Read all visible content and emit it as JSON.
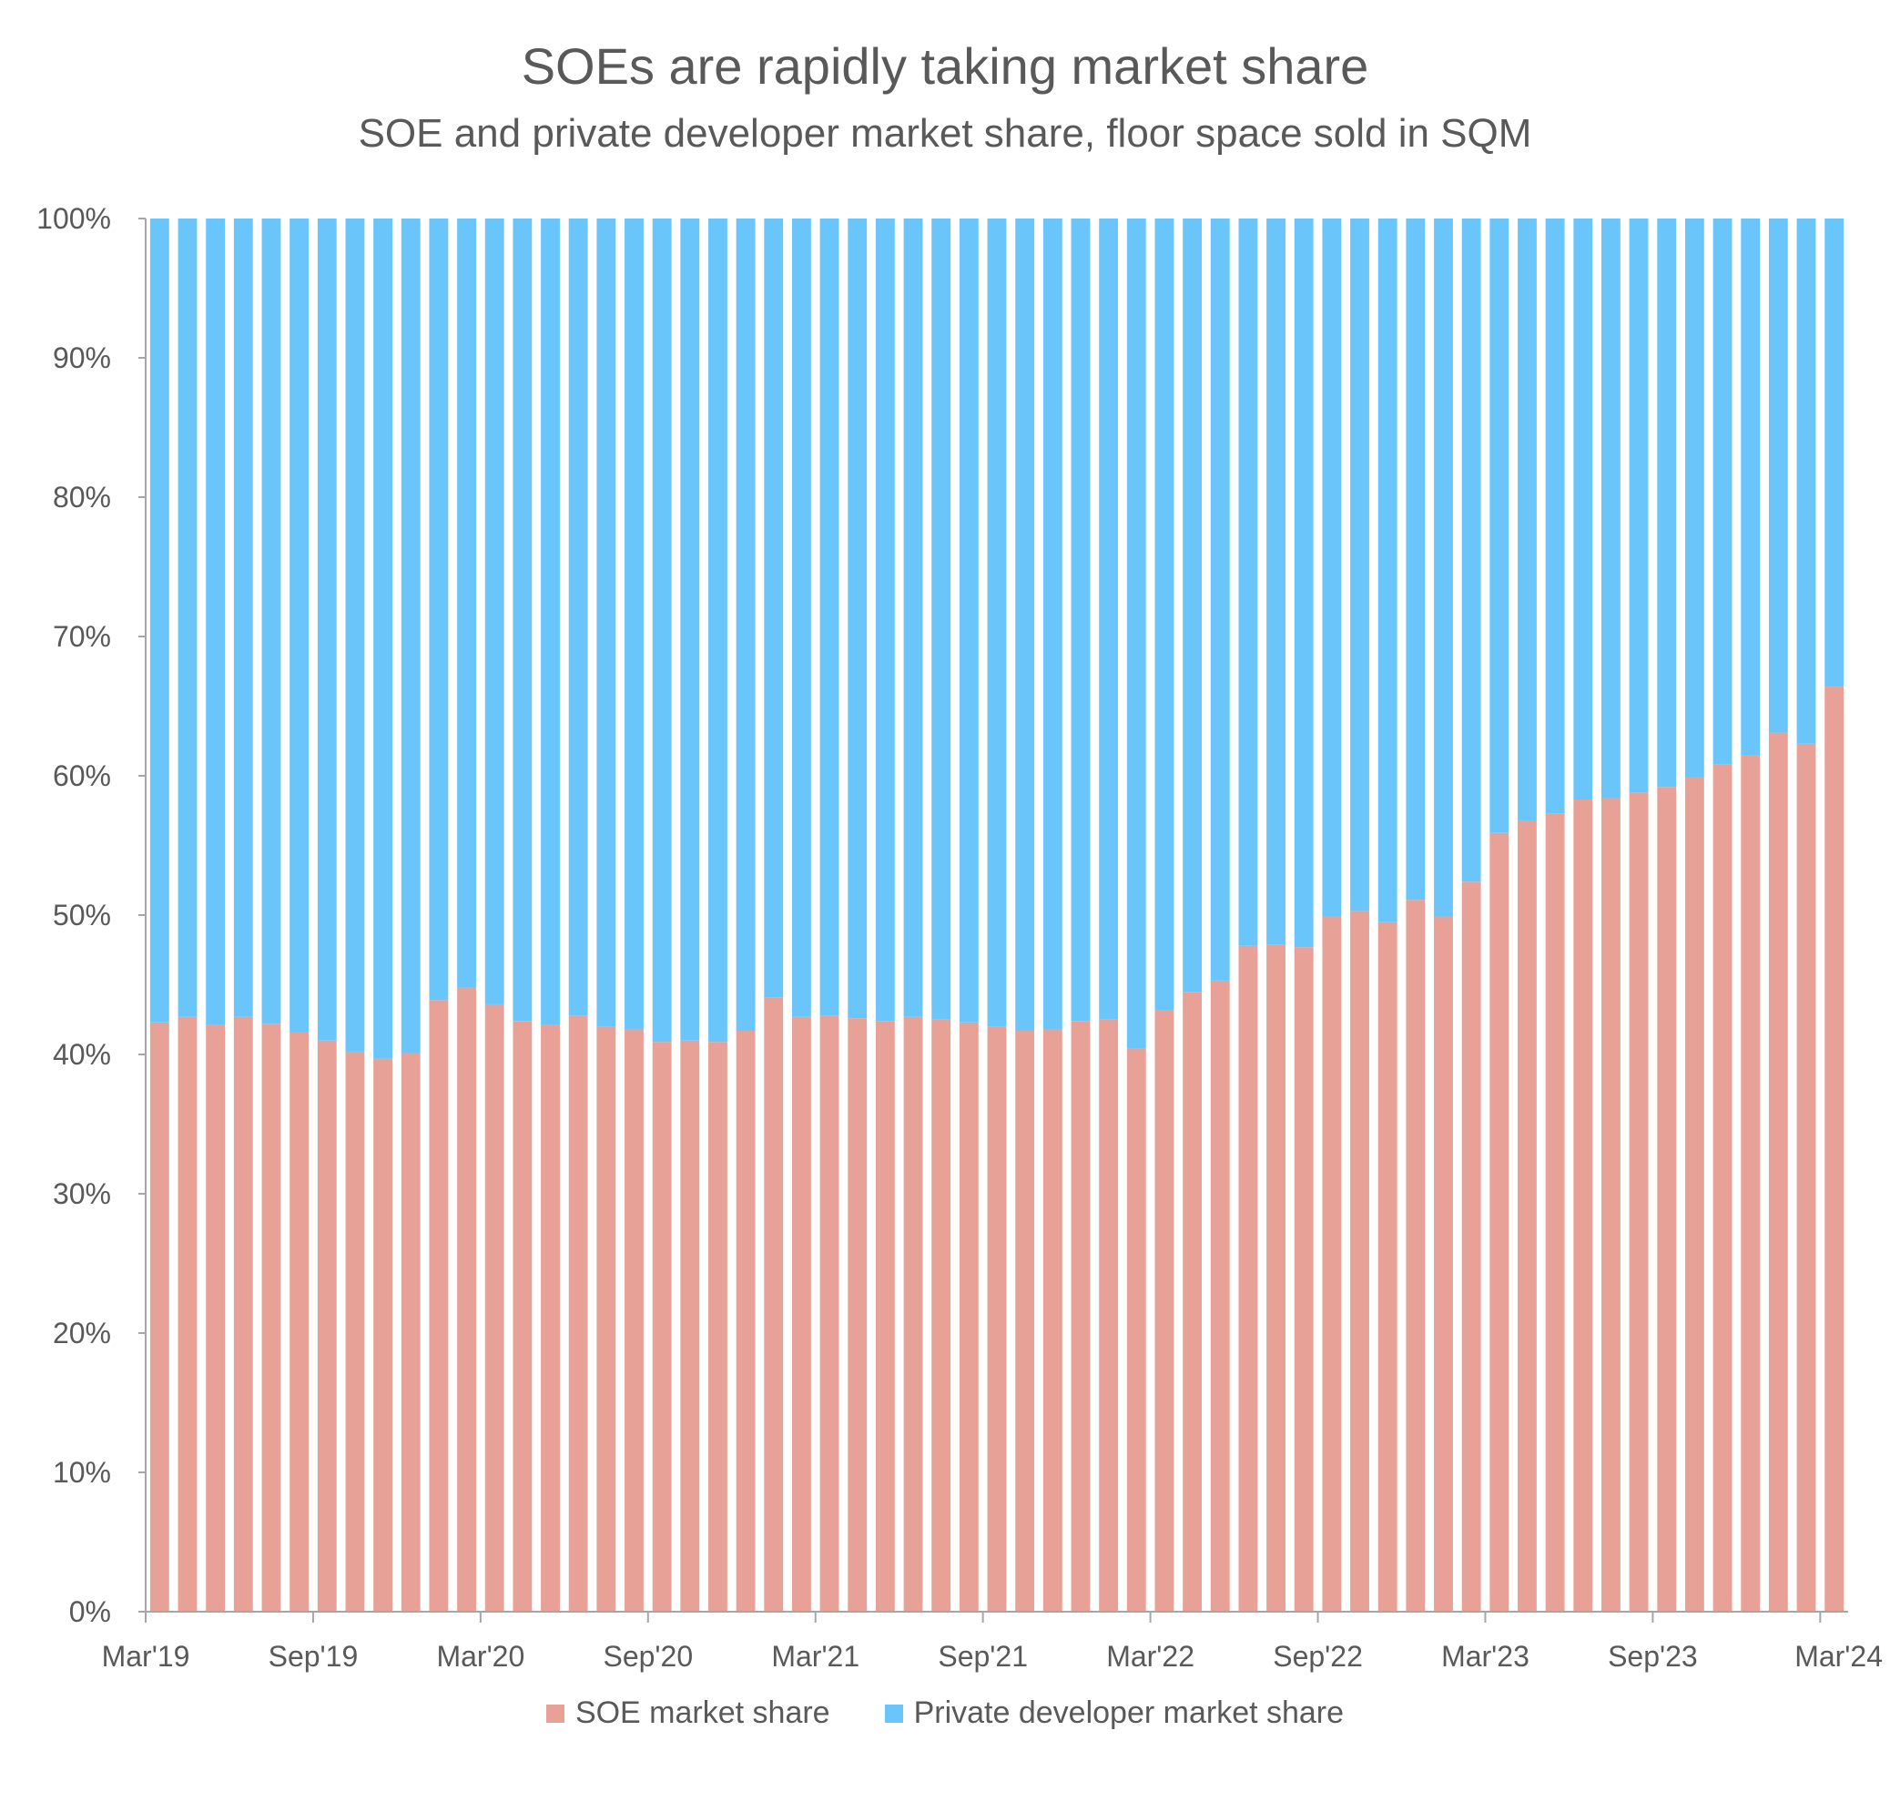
{
  "chart_data": {
    "type": "bar",
    "stacked": true,
    "title": "SOEs are rapidly taking market share",
    "subtitle": "SOE and private developer market share, floor space sold in SQM",
    "xlabel": "",
    "ylabel": "",
    "ylim": [
      0,
      100
    ],
    "yticks": [
      "0%",
      "10%",
      "20%",
      "30%",
      "40%",
      "50%",
      "60%",
      "70%",
      "80%",
      "90%",
      "100%"
    ],
    "x_tick_labels": [
      "Mar'19",
      "Sep'19",
      "Mar'20",
      "Sep'20",
      "Mar'21",
      "Sep'21",
      "Mar'22",
      "Sep'22",
      "Mar'23",
      "Sep'23",
      "Mar'24"
    ],
    "grid": false,
    "legend_position": "bottom",
    "series": [
      {
        "name": "SOE market share",
        "color": "#E8A196",
        "values": [
          42.3,
          42.7,
          42.1,
          42.7,
          42.2,
          41.6,
          41.0,
          40.2,
          39.7,
          40.1,
          43.9,
          44.8,
          43.6,
          42.4,
          42.1,
          42.8,
          42.0,
          41.8,
          40.9,
          41.0,
          40.9,
          41.7,
          44.1,
          42.7,
          42.8,
          42.6,
          42.4,
          42.7,
          42.5,
          42.3,
          42.0,
          41.7,
          41.8,
          42.4,
          42.5,
          40.4,
          43.2,
          44.5,
          45.3,
          47.8,
          47.9,
          47.7,
          49.9,
          50.3,
          49.5,
          51.1,
          49.9,
          52.4,
          55.9,
          56.8,
          57.3,
          58.3,
          58.4,
          58.8,
          59.2,
          59.9,
          60.8,
          61.5,
          63.1,
          62.3,
          66.4
        ]
      },
      {
        "name": "Private developer market share",
        "color": "#6AC6FA",
        "values": [
          57.7,
          57.3,
          57.9,
          57.3,
          57.8,
          58.4,
          59.0,
          59.8,
          60.3,
          59.9,
          56.1,
          55.2,
          56.4,
          57.6,
          57.9,
          57.2,
          58.0,
          58.2,
          59.1,
          59.0,
          59.1,
          58.3,
          55.9,
          57.3,
          57.2,
          57.4,
          57.6,
          57.3,
          57.5,
          57.7,
          58.0,
          58.3,
          58.2,
          57.6,
          57.5,
          59.6,
          56.8,
          55.5,
          54.7,
          52.2,
          52.1,
          52.3,
          50.1,
          49.7,
          50.5,
          48.9,
          50.1,
          47.6,
          44.1,
          43.2,
          42.7,
          41.7,
          41.6,
          41.2,
          40.8,
          40.1,
          39.2,
          38.5,
          36.9,
          37.7,
          33.6
        ]
      }
    ]
  }
}
